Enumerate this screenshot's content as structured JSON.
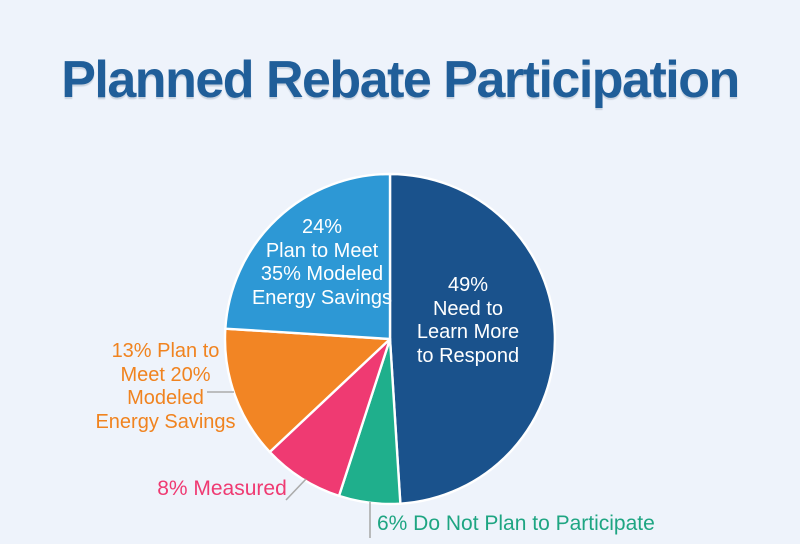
{
  "title": "Planned Rebate Participation",
  "colors": {
    "background": "#EEF3FB",
    "title_text": "#205E99",
    "slice_divider": "#FFFFFF",
    "leader_line": "#ABABAB"
  },
  "chart_data": {
    "type": "pie",
    "title": "Planned Rebate Participation",
    "start_angle_deg": 0,
    "direction": "clockwise",
    "legend": "none",
    "units": "percent",
    "slices": [
      {
        "name": "need-to-learn-more",
        "value": 49,
        "color": "#1A528C",
        "label": "49% Need to Learn More to Respond",
        "label_lines": [
          "49%",
          "Need to",
          "Learn More",
          "to Respond"
        ],
        "label_placement": "inside",
        "label_color": "#FFFFFF"
      },
      {
        "name": "do-not-plan-to-participate",
        "value": 6,
        "color": "#1FAF8C",
        "label": "6% Do Not Plan to Participate",
        "label_lines": [
          "6% Do Not Plan to Participate"
        ],
        "label_placement": "outside-bottom",
        "label_color": "#1EA582"
      },
      {
        "name": "measured",
        "value": 8,
        "color": "#EF3A72",
        "label": "8% Measured",
        "label_lines": [
          "8% Measured"
        ],
        "label_placement": "outside-left",
        "label_color": "#EF3A72"
      },
      {
        "name": "plan-to-meet-20-modeled",
        "value": 13,
        "color": "#F28524",
        "label": "13% Plan to Meet 20% Modeled Energy Savings",
        "label_lines": [
          "13% Plan to",
          "Meet 20%",
          "Modeled",
          "Energy Savings"
        ],
        "label_placement": "outside-left",
        "label_color": "#F0831F"
      },
      {
        "name": "plan-to-meet-35-modeled",
        "value": 24,
        "color": "#2D98D5",
        "label": "24% Plan to Meet 35% Modeled Energy Savings",
        "label_lines": [
          "24%",
          "Plan to Meet",
          "35% Modeled",
          "Energy Savings"
        ],
        "label_placement": "inside",
        "label_color": "#FFFFFF"
      }
    ]
  }
}
